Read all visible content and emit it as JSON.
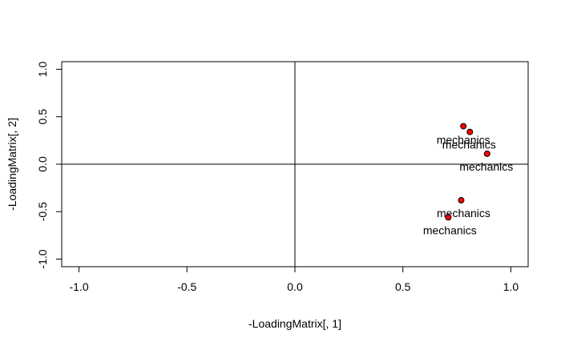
{
  "chart_data": {
    "type": "scatter",
    "title": "",
    "xlabel": "-LoadingMatrix[, 1]",
    "ylabel": "-LoadingMatrix[, 2]",
    "xlim": [
      -1.08,
      1.08
    ],
    "ylim": [
      -1.08,
      1.08
    ],
    "x_ticks": [
      "-1.0",
      "-0.5",
      "0.0",
      "0.5",
      "1.0"
    ],
    "y_ticks": [
      "-1.0",
      "-0.5",
      "0.0",
      "0.5",
      "1.0"
    ],
    "grid": false,
    "reference_lines": {
      "x": 0,
      "y": 0
    },
    "point_color": "#ff0000",
    "points": [
      {
        "x": 0.78,
        "y": 0.4,
        "label": "mechanics"
      },
      {
        "x": 0.81,
        "y": 0.34,
        "label": "mechanics"
      },
      {
        "x": 0.89,
        "y": 0.11,
        "label": "mechanics"
      },
      {
        "x": 0.77,
        "y": -0.38,
        "label": "mechanics"
      },
      {
        "x": 0.71,
        "y": -0.56,
        "label": "mechanics"
      }
    ]
  }
}
